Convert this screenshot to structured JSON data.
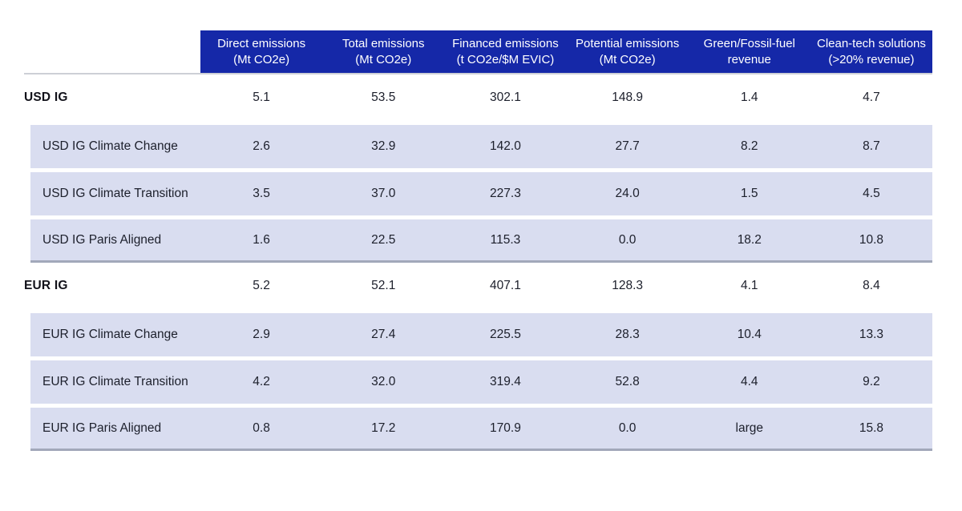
{
  "chart_data": {
    "type": "table",
    "columns": [
      {
        "line1": "Direct emissions",
        "line2": "(Mt CO2e)"
      },
      {
        "line1": "Total emissions",
        "line2": "(Mt CO2e)"
      },
      {
        "line1": "Financed emissions",
        "line2": "(t CO2e/$M EVIC)"
      },
      {
        "line1": "Potential emissions",
        "line2": "(Mt CO2e)"
      },
      {
        "line1": "Green/Fossil-fuel",
        "line2": "revenue"
      },
      {
        "line1": "Clean-tech solutions",
        "line2": "(>20% revenue)"
      }
    ],
    "rows": [
      {
        "label": "USD IG",
        "style": "group",
        "values": [
          "5.1",
          "53.5",
          "302.1",
          "148.9",
          "1.4",
          "4.7"
        ]
      },
      {
        "label": "USD IG Climate Change",
        "style": "sub",
        "values": [
          "2.6",
          "32.9",
          "142.0",
          "27.7",
          "8.2",
          "8.7"
        ]
      },
      {
        "label": "USD IG Climate Transition",
        "style": "sub",
        "values": [
          "3.5",
          "37.0",
          "227.3",
          "24.0",
          "1.5",
          "4.5"
        ]
      },
      {
        "label": "USD IG Paris Aligned",
        "style": "sub-last",
        "values": [
          "1.6",
          "22.5",
          "115.3",
          "0.0",
          "18.2",
          "10.8"
        ]
      },
      {
        "label": "EUR IG",
        "style": "group",
        "values": [
          "5.2",
          "52.1",
          "407.1",
          "128.3",
          "4.1",
          "8.4"
        ]
      },
      {
        "label": "EUR IG Climate Change",
        "style": "sub",
        "values": [
          "2.9",
          "27.4",
          "225.5",
          "28.3",
          "10.4",
          "13.3"
        ]
      },
      {
        "label": "EUR IG Climate Transition",
        "style": "sub",
        "values": [
          "4.2",
          "32.0",
          "319.4",
          "52.8",
          "4.4",
          "9.2"
        ]
      },
      {
        "label": "EUR IG Paris Aligned",
        "style": "sub-last",
        "values": [
          "0.8",
          "17.2",
          "170.9",
          "0.0",
          "large",
          "15.8"
        ]
      }
    ]
  },
  "colors": {
    "header_bg": "#1528a8",
    "header_text": "#ffffff",
    "subrow_bg": "#d9ddf0",
    "group_separator": "#a2a8ba",
    "header_rule": "#cdd0d6",
    "row_text": "#1c1f2b",
    "group_text": "#12121a"
  }
}
